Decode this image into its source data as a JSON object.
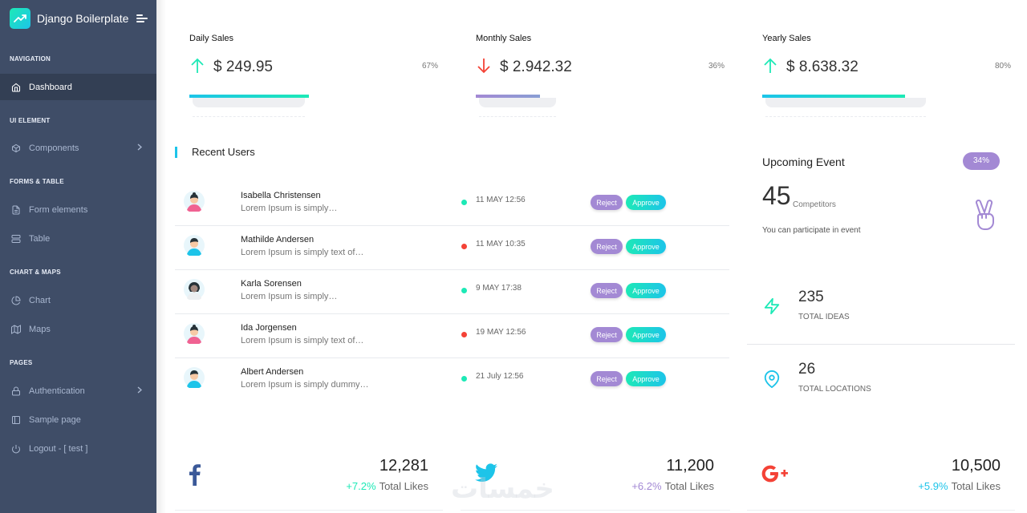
{
  "sidebar": {
    "brand": "Django Boilerplate",
    "sections": [
      {
        "caption": "NAVIGATION",
        "items": [
          {
            "label": "Dashboard",
            "icon": "home-icon",
            "active": true
          }
        ]
      },
      {
        "caption": "UI ELEMENT",
        "items": [
          {
            "label": "Components",
            "icon": "box-icon",
            "chevron": true
          }
        ]
      },
      {
        "caption": "FORMS & TABLE",
        "items": [
          {
            "label": "Form elements",
            "icon": "file-text-icon"
          },
          {
            "label": "Table",
            "icon": "server-icon"
          }
        ]
      },
      {
        "caption": "CHART & MAPS",
        "items": [
          {
            "label": "Chart",
            "icon": "pie-chart-icon"
          },
          {
            "label": "Maps",
            "icon": "map-icon"
          }
        ]
      },
      {
        "caption": "PAGES",
        "items": [
          {
            "label": "Authentication",
            "icon": "lock-icon",
            "chevron": true
          },
          {
            "label": "Sample page",
            "icon": "sidebar-icon"
          },
          {
            "label": "Logout - [ test ]",
            "icon": "power-icon"
          }
        ]
      }
    ]
  },
  "stats": [
    {
      "label": "Daily Sales",
      "value": "$ 249.95",
      "percent": "67%",
      "progress": 0.67,
      "direction": "up",
      "arrow_color": "#1de9b6",
      "bar_color": "linear-gradient(to right, #1dc4e9, #1de9b6)"
    },
    {
      "label": "Monthly Sales",
      "value": "$ 2.942.32",
      "percent": "36%",
      "progress": 0.36,
      "direction": "down",
      "arrow_color": "#f44236",
      "bar_color": "linear-gradient(to right, #a389d4, #899ed4)"
    },
    {
      "label": "Yearly Sales",
      "value": "$ 8.638.32",
      "percent": "80%",
      "progress": 0.8,
      "direction": "up",
      "arrow_color": "#1de9b6",
      "bar_color": "linear-gradient(to right, #1dc4e9, #1de9b6)"
    }
  ],
  "recent": {
    "title": "Recent Users",
    "reject_label": "Reject",
    "approve_label": "Approve",
    "users": [
      {
        "name": "Isabella Christensen",
        "desc": "Lorem Ipsum is simply…",
        "date": "11 MAY 12:56",
        "status_color": "#1de9b6",
        "avatar": "female"
      },
      {
        "name": "Mathilde Andersen",
        "desc": "Lorem Ipsum is simply text of…",
        "date": "11 MAY 10:35",
        "status_color": "#f44236",
        "avatar": "male"
      },
      {
        "name": "Karla Sorensen",
        "desc": "Lorem Ipsum is simply…",
        "date": "9 MAY 17:38",
        "status_color": "#1de9b6",
        "avatar": "female-dark"
      },
      {
        "name": "Ida Jorgensen",
        "desc": "Lorem Ipsum is simply text of…",
        "date": "19 MAY 12:56",
        "status_color": "#f44236",
        "avatar": "female"
      },
      {
        "name": "Albert Andersen",
        "desc": "Lorem Ipsum is simply dummy…",
        "date": "21 July 12:56",
        "status_color": "#1de9b6",
        "avatar": "male"
      }
    ]
  },
  "event": {
    "title": "Upcoming Event",
    "badge": "34%",
    "count": "45",
    "unit": "Competitors",
    "note": "You can participate in event",
    "icon": "victory-hand-icon"
  },
  "metrics": [
    {
      "value": "235",
      "label": "TOTAL IDEAS",
      "icon": "zap-icon",
      "color": "#1de9b6"
    },
    {
      "value": "26",
      "label": "TOTAL LOCATIONS",
      "icon": "map-pin-icon",
      "color": "#1dc4e9"
    }
  ],
  "social": [
    {
      "network": "facebook",
      "icon": "facebook-icon",
      "count": "12,281",
      "growth": "+7.2%",
      "growth_color": "#1de9b6",
      "label": "Total Likes"
    },
    {
      "network": "twitter",
      "icon": "twitter-icon",
      "count": "11,200",
      "growth": "+6.2%",
      "growth_color": "#a389d4",
      "label": "Total Likes"
    },
    {
      "network": "google-plus",
      "icon": "google-plus-icon",
      "count": "10,500",
      "growth": "+5.9%",
      "growth_color": "#1dc4e9",
      "label": "Total Likes"
    }
  ],
  "watermark": "خمسات",
  "colors": {
    "sidebar_bg": "#3f4d67",
    "active_bg": "#333f54",
    "accent_green": "#1de9b6",
    "accent_blue": "#1dc4e9",
    "accent_purple": "#a389d4",
    "danger": "#f44236"
  }
}
